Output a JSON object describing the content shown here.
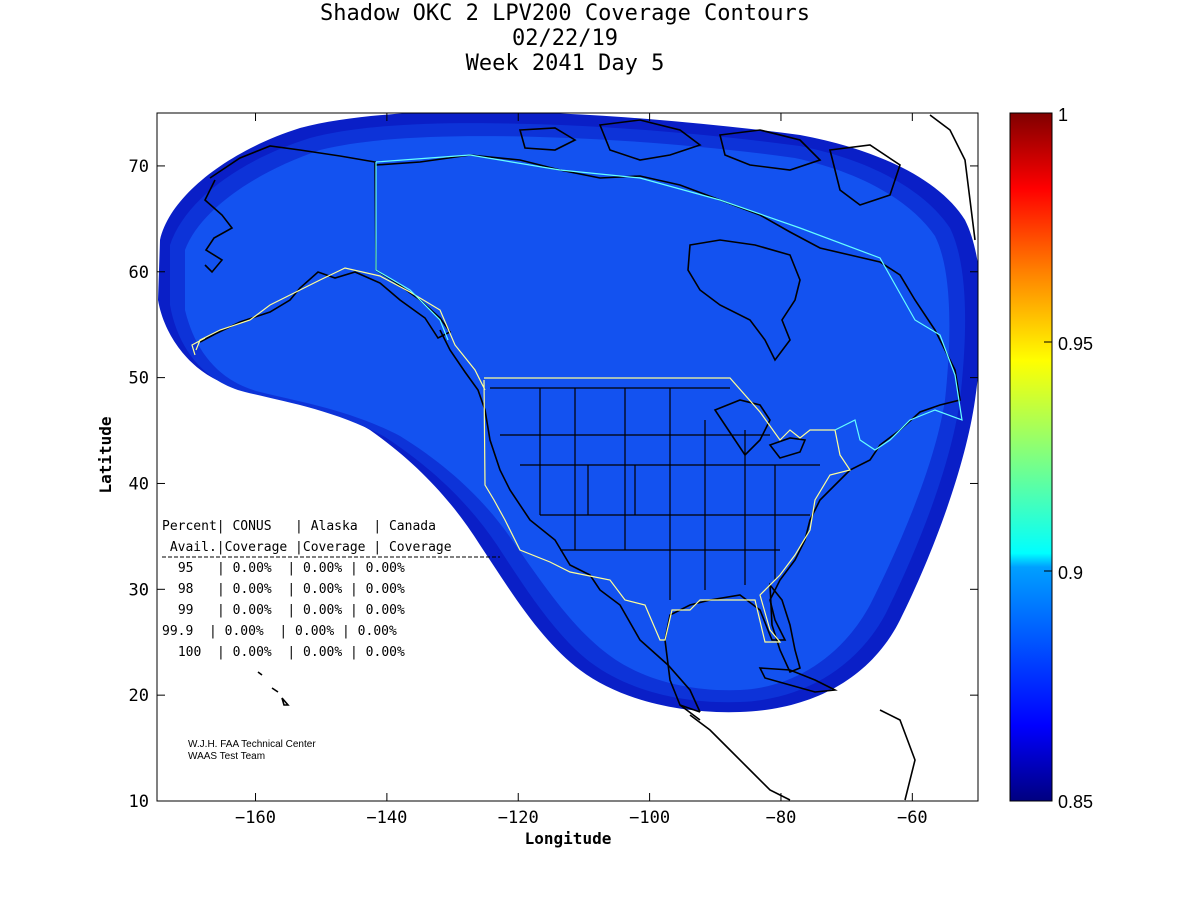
{
  "title_lines": [
    "Shadow OKC 2 LPV200 Coverage Contours",
    "02/22/19",
    "Week 2041 Day 5"
  ],
  "axes": {
    "x_label": "Longitude",
    "y_label": "Latitude",
    "x_ticks": [
      -160,
      -140,
      -120,
      -100,
      -80,
      -60
    ],
    "y_ticks": [
      10,
      20,
      30,
      40,
      50,
      60,
      70
    ],
    "x_range": [
      -175,
      -50
    ],
    "y_range": [
      10,
      75
    ]
  },
  "colorbar": {
    "ticks": [
      "1",
      "0.95",
      "0.9",
      "0.85"
    ],
    "range": [
      0.85,
      1.0
    ],
    "colormap": "jet"
  },
  "coverage_table": {
    "header1": "Percent| CONUS   | Alaska  | Canada",
    "header2": " Avail.|Coverage |Coverage | Coverage",
    "rows": [
      " 95   | 0.00%  | 0.00% | 0.00%",
      " 98   | 0.00%  | 0.00% | 0.00%",
      " 99   | 0.00%  | 0.00% | 0.00%",
      "99.9  | 0.00%  | 0.00% | 0.00%",
      " 100  | 0.00%  | 0.00% | 0.00%"
    ]
  },
  "credit": [
    "W.J.H. FAA Technical Center",
    "WAAS Test Team"
  ],
  "colors": {
    "coverage_outer": "#0a1fc7",
    "coverage_mid": "#0d33d8",
    "coverage_inner": "#1352f0",
    "region_outline": "#ffff99"
  }
}
